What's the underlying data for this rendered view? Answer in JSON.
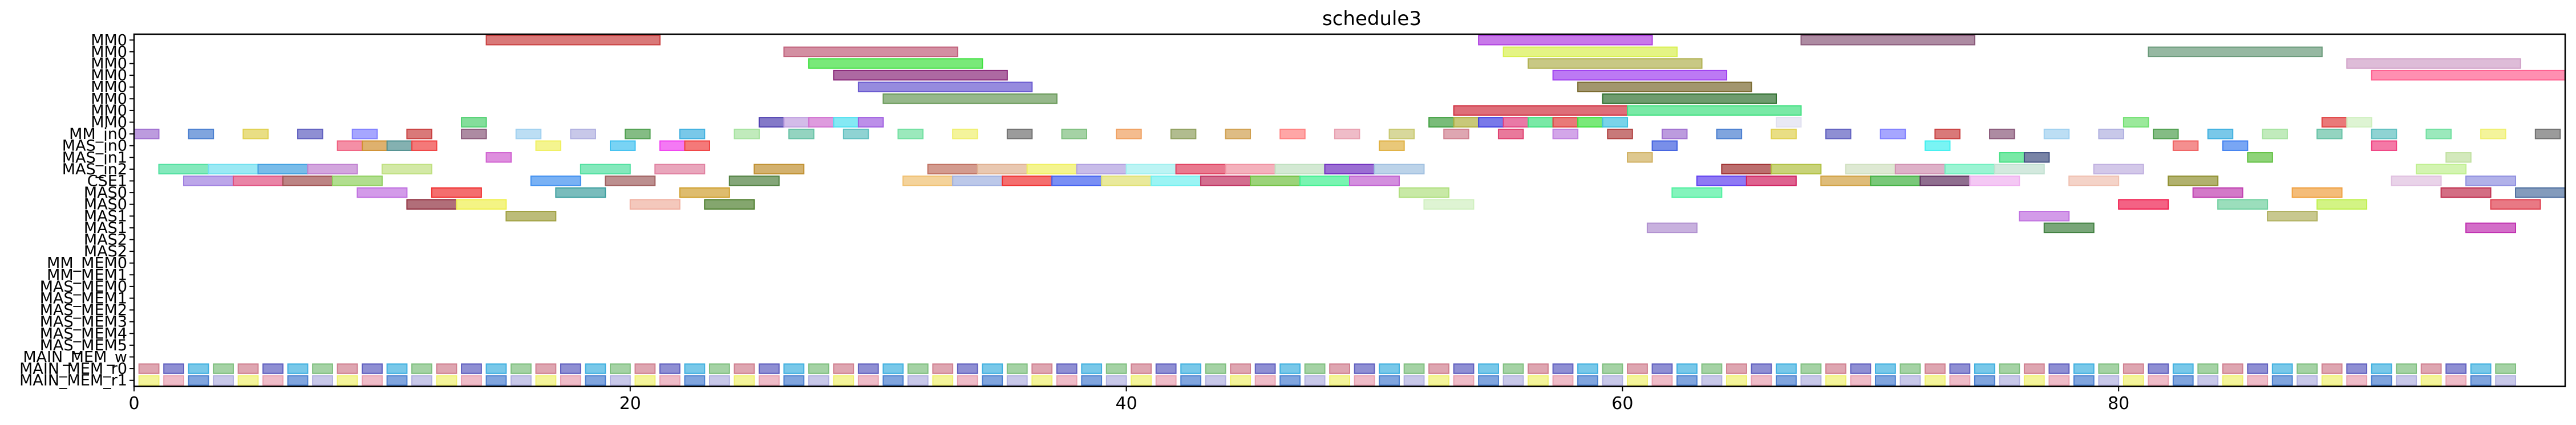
{
  "chart_data": {
    "type": "gantt",
    "title": "schedule3",
    "xlabel": "",
    "ylabel": "",
    "xlim": [
      0,
      98
    ],
    "x_ticks": [
      0,
      20,
      40,
      60,
      80
    ],
    "rows": [
      "MM0",
      "MM0",
      "MM0",
      "MM0",
      "MM0",
      "MM0",
      "MM0",
      "MM0",
      "MM_in0",
      "MAS_in0",
      "MAS_in1",
      "MAS_in2",
      "CSE1",
      "MAS0",
      "MAS0",
      "MAS1",
      "MAS1",
      "MAS2",
      "MAS2",
      "MM_MEM0",
      "MM_MEM1",
      "MAS_MEM0",
      "MAS_MEM1",
      "MAS_MEM2",
      "MAS_MEM3",
      "MAS_MEM4",
      "MAS_MEM5",
      "MAIN_MEM_w",
      "MAIN_MEM_r0",
      "MAIN_MEM_r1"
    ],
    "palette": [
      "#c94040",
      "#e8a0b0",
      "#a6e3a0",
      "#a070d0",
      "#7fbf7f",
      "#8a5a7a",
      "#c8c870",
      "#66c2a5",
      "#4a7fd0",
      "#f0a060",
      "#a0d0f0",
      "#d08090",
      "#60c0c0",
      "#e0d050",
      "#90a060",
      "#b0b0e0",
      "#e04070",
      "#70e0a0",
      "#6060c0",
      "#d0a050",
      "#50a050",
      "#c080e0",
      "#f0f070",
      "#8080ff",
      "#ff8080",
      "#40b0e0",
      "#b04040",
      "#707070"
    ],
    "bars": [
      {
        "row": 0,
        "start": 14.2,
        "end": 21.2,
        "color": "#c94040"
      },
      {
        "row": 0,
        "start": 54.2,
        "end": 61.2,
        "color": "#b040e0"
      },
      {
        "row": 0,
        "start": 67.2,
        "end": 74.2,
        "color": "#8a5a7a"
      },
      {
        "row": 1,
        "start": 26.2,
        "end": 33.2,
        "color": "#c0607a"
      },
      {
        "row": 1,
        "start": 55.2,
        "end": 62.2,
        "color": "#d8f050"
      },
      {
        "row": 1,
        "start": 81.2,
        "end": 88.2,
        "color": "#6a9a7a"
      },
      {
        "row": 2,
        "start": 27.2,
        "end": 34.2,
        "color": "#40e040"
      },
      {
        "row": 2,
        "start": 56.2,
        "end": 63.2,
        "color": "#b0b050"
      },
      {
        "row": 2,
        "start": 89.2,
        "end": 96.2,
        "color": "#d0a0c8"
      },
      {
        "row": 3,
        "start": 28.2,
        "end": 35.2,
        "color": "#8a2a7a"
      },
      {
        "row": 3,
        "start": 57.2,
        "end": 64.2,
        "color": "#a040f0"
      },
      {
        "row": 3,
        "start": 90.2,
        "end": 98.0,
        "color": "#ff6090"
      },
      {
        "row": 4,
        "start": 29.2,
        "end": 36.2,
        "color": "#6a5ad0"
      },
      {
        "row": 4,
        "start": 58.2,
        "end": 65.2,
        "color": "#7a6a30"
      },
      {
        "row": 5,
        "start": 30.2,
        "end": 37.2,
        "color": "#6a9a5a"
      },
      {
        "row": 5,
        "start": 59.2,
        "end": 66.2,
        "color": "#307030"
      },
      {
        "row": 6,
        "start": 53.2,
        "end": 60.2,
        "color": "#d03040"
      },
      {
        "row": 6,
        "start": 60.2,
        "end": 67.2,
        "color": "#40e080"
      },
      {
        "row": 7,
        "start": 13.2,
        "end": 14.2,
        "color": "#50d070"
      },
      {
        "row": 7,
        "start": 25.2,
        "end": 26.2,
        "color": "#5040b0"
      },
      {
        "row": 7,
        "start": 26.2,
        "end": 27.2,
        "color": "#c0a0e0"
      },
      {
        "row": 7,
        "start": 27.2,
        "end": 28.2,
        "color": "#d070d0"
      },
      {
        "row": 7,
        "start": 28.2,
        "end": 29.2,
        "color": "#50e0f0"
      },
      {
        "row": 7,
        "start": 29.2,
        "end": 30.2,
        "color": "#a060e0"
      },
      {
        "row": 7,
        "start": 52.2,
        "end": 53.2,
        "color": "#40a040"
      },
      {
        "row": 7,
        "start": 53.2,
        "end": 54.2,
        "color": "#b0b040"
      },
      {
        "row": 7,
        "start": 54.2,
        "end": 55.2,
        "color": "#4040e0"
      },
      {
        "row": 7,
        "start": 55.2,
        "end": 56.2,
        "color": "#e04080"
      },
      {
        "row": 7,
        "start": 56.2,
        "end": 57.2,
        "color": "#40e080"
      },
      {
        "row": 7,
        "start": 57.2,
        "end": 58.2,
        "color": "#e04040"
      },
      {
        "row": 7,
        "start": 58.2,
        "end": 59.2,
        "color": "#40e040"
      },
      {
        "row": 7,
        "start": 59.2,
        "end": 60.2,
        "color": "#40c0e0"
      },
      {
        "row": 7,
        "start": 66.2,
        "end": 67.2,
        "color": "#e0e0f0"
      },
      {
        "row": 7,
        "start": 80.2,
        "end": 81.2,
        "color": "#70e070"
      },
      {
        "row": 7,
        "start": 88.2,
        "end": 89.2,
        "color": "#e04040"
      },
      {
        "row": 7,
        "start": 89.2,
        "end": 90.2,
        "color": "#d0f0c0"
      },
      {
        "row": 9,
        "start": 8.2,
        "end": 9.2,
        "color": "#f06080"
      },
      {
        "row": 9,
        "start": 9.2,
        "end": 10.2,
        "color": "#d09030"
      },
      {
        "row": 9,
        "start": 10.2,
        "end": 11.2,
        "color": "#509090"
      },
      {
        "row": 9,
        "start": 11.2,
        "end": 12.2,
        "color": "#f04040"
      },
      {
        "row": 9,
        "start": 16.2,
        "end": 17.2,
        "color": "#f0f060"
      },
      {
        "row": 9,
        "start": 19.2,
        "end": 20.2,
        "color": "#40c0f0"
      },
      {
        "row": 9,
        "start": 21.2,
        "end": 22.2,
        "color": "#f040f0"
      },
      {
        "row": 9,
        "start": 22.2,
        "end": 23.2,
        "color": "#f04040"
      },
      {
        "row": 9,
        "start": 50.2,
        "end": 51.2,
        "color": "#e0b040"
      },
      {
        "row": 9,
        "start": 61.2,
        "end": 62.2,
        "color": "#4060e0"
      },
      {
        "row": 9,
        "start": 72.2,
        "end": 73.2,
        "color": "#40f0f0"
      },
      {
        "row": 9,
        "start": 82.2,
        "end": 83.2,
        "color": "#f06060"
      },
      {
        "row": 9,
        "start": 84.2,
        "end": 85.2,
        "color": "#4080f0"
      },
      {
        "row": 9,
        "start": 90.2,
        "end": 91.2,
        "color": "#f04080"
      },
      {
        "row": 10,
        "start": 14.2,
        "end": 15.2,
        "color": "#d060d0"
      },
      {
        "row": 10,
        "start": 60.2,
        "end": 61.2,
        "color": "#d0b060"
      },
      {
        "row": 10,
        "start": 75.2,
        "end": 76.2,
        "color": "#40e080"
      },
      {
        "row": 10,
        "start": 76.2,
        "end": 77.2,
        "color": "#405080"
      },
      {
        "row": 10,
        "start": 85.2,
        "end": 86.2,
        "color": "#60c040"
      },
      {
        "row": 10,
        "start": 93.2,
        "end": 94.2,
        "color": "#c0e0a0"
      },
      {
        "row": 11,
        "start": 1.0,
        "end": 3.0,
        "color": "#50e0a0"
      },
      {
        "row": 11,
        "start": 3.0,
        "end": 5.0,
        "color": "#70e0f0"
      },
      {
        "row": 11,
        "start": 5.0,
        "end": 7.0,
        "color": "#40a0e0"
      },
      {
        "row": 11,
        "start": 7.0,
        "end": 9.0,
        "color": "#c080d0"
      },
      {
        "row": 11,
        "start": 10.0,
        "end": 12.0,
        "color": "#c0e080"
      },
      {
        "row": 11,
        "start": 18.0,
        "end": 20.0,
        "color": "#50e0a0"
      },
      {
        "row": 11,
        "start": 21.0,
        "end": 23.0,
        "color": "#e080a0"
      },
      {
        "row": 11,
        "start": 25.0,
        "end": 27.0,
        "color": "#c09030"
      },
      {
        "row": 11,
        "start": 32.0,
        "end": 34.0,
        "color": "#c07060"
      },
      {
        "row": 11,
        "start": 34.0,
        "end": 36.0,
        "color": "#e0b090"
      },
      {
        "row": 11,
        "start": 36.0,
        "end": 38.0,
        "color": "#f0f060"
      },
      {
        "row": 11,
        "start": 38.0,
        "end": 40.0,
        "color": "#b0a0e0"
      },
      {
        "row": 11,
        "start": 40.0,
        "end": 42.0,
        "color": "#a0f0f0"
      },
      {
        "row": 11,
        "start": 42.0,
        "end": 44.0,
        "color": "#e04060"
      },
      {
        "row": 11,
        "start": 44.0,
        "end": 46.0,
        "color": "#f090a0"
      },
      {
        "row": 11,
        "start": 46.0,
        "end": 48.0,
        "color": "#c0e0c0"
      },
      {
        "row": 11,
        "start": 48.0,
        "end": 50.0,
        "color": "#7030c0"
      },
      {
        "row": 11,
        "start": 50.0,
        "end": 52.0,
        "color": "#a0c0e0"
      },
      {
        "row": 11,
        "start": 64.0,
        "end": 66.0,
        "color": "#a03030"
      },
      {
        "row": 11,
        "start": 66.0,
        "end": 68.0,
        "color": "#b0c040"
      },
      {
        "row": 11,
        "start": 69.0,
        "end": 71.0,
        "color": "#d0e0c0"
      },
      {
        "row": 11,
        "start": 71.0,
        "end": 73.0,
        "color": "#d090b0"
      },
      {
        "row": 11,
        "start": 73.0,
        "end": 75.0,
        "color": "#70f0c0"
      },
      {
        "row": 11,
        "start": 75.0,
        "end": 77.0,
        "color": "#c0e0d0"
      },
      {
        "row": 11,
        "start": 79.0,
        "end": 81.0,
        "color": "#c0b0e0"
      },
      {
        "row": 11,
        "start": 92.0,
        "end": 94.0,
        "color": "#c0f090"
      },
      {
        "row": 12,
        "start": 2.0,
        "end": 4.0,
        "color": "#a080e0"
      },
      {
        "row": 12,
        "start": 4.0,
        "end": 6.0,
        "color": "#e05080"
      },
      {
        "row": 12,
        "start": 6.0,
        "end": 8.0,
        "color": "#a05050"
      },
      {
        "row": 12,
        "start": 8.0,
        "end": 10.0,
        "color": "#90d060"
      },
      {
        "row": 12,
        "start": 16.0,
        "end": 18.0,
        "color": "#4090f0"
      },
      {
        "row": 12,
        "start": 19.0,
        "end": 21.0,
        "color": "#a06060"
      },
      {
        "row": 12,
        "start": 24.0,
        "end": 26.0,
        "color": "#508040"
      },
      {
        "row": 12,
        "start": 31.0,
        "end": 33.0,
        "color": "#f0c070"
      },
      {
        "row": 12,
        "start": 33.0,
        "end": 35.0,
        "color": "#a0b0e0"
      },
      {
        "row": 12,
        "start": 35.0,
        "end": 37.0,
        "color": "#f03030"
      },
      {
        "row": 12,
        "start": 37.0,
        "end": 39.0,
        "color": "#4060f0"
      },
      {
        "row": 12,
        "start": 39.0,
        "end": 41.0,
        "color": "#e0e070"
      },
      {
        "row": 12,
        "start": 41.0,
        "end": 43.0,
        "color": "#70f0f0"
      },
      {
        "row": 12,
        "start": 43.0,
        "end": 45.0,
        "color": "#c03060"
      },
      {
        "row": 12,
        "start": 45.0,
        "end": 47.0,
        "color": "#70c040"
      },
      {
        "row": 12,
        "start": 47.0,
        "end": 49.0,
        "color": "#40f090"
      },
      {
        "row": 12,
        "start": 49.0,
        "end": 51.0,
        "color": "#c060d0"
      },
      {
        "row": 12,
        "start": 63.0,
        "end": 65.0,
        "color": "#6040f0"
      },
      {
        "row": 12,
        "start": 65.0,
        "end": 67.0,
        "color": "#d02060"
      },
      {
        "row": 12,
        "start": 68.0,
        "end": 70.0,
        "color": "#d0a040"
      },
      {
        "row": 12,
        "start": 70.0,
        "end": 72.0,
        "color": "#40b040"
      },
      {
        "row": 12,
        "start": 72.0,
        "end": 74.0,
        "color": "#603060"
      },
      {
        "row": 12,
        "start": 74.0,
        "end": 76.0,
        "color": "#f0b0f0"
      },
      {
        "row": 12,
        "start": 78.0,
        "end": 80.0,
        "color": "#f0c0b0"
      },
      {
        "row": 12,
        "start": 82.0,
        "end": 84.0,
        "color": "#909030"
      },
      {
        "row": 12,
        "start": 91.0,
        "end": 93.0,
        "color": "#e0c0e0"
      },
      {
        "row": 12,
        "start": 94.0,
        "end": 96.0,
        "color": "#9090e0"
      },
      {
        "row": 13,
        "start": 9.0,
        "end": 11.0,
        "color": "#c070e0"
      },
      {
        "row": 13,
        "start": 12.0,
        "end": 14.0,
        "color": "#f03030"
      },
      {
        "row": 13,
        "start": 17.0,
        "end": 19.0,
        "color": "#40a0a0"
      },
      {
        "row": 13,
        "start": 22.0,
        "end": 24.0,
        "color": "#d0a030"
      },
      {
        "row": 13,
        "start": 51.0,
        "end": 53.0,
        "color": "#b0e080"
      },
      {
        "row": 13,
        "start": 62.0,
        "end": 64.0,
        "color": "#50f0a0"
      },
      {
        "row": 13,
        "start": 83.0,
        "end": 85.0,
        "color": "#c040b0"
      },
      {
        "row": 13,
        "start": 87.0,
        "end": 89.0,
        "color": "#f0a040"
      },
      {
        "row": 13,
        "start": 93.0,
        "end": 95.0,
        "color": "#c03050"
      },
      {
        "row": 13,
        "start": 96.0,
        "end": 98.0,
        "color": "#5070a0"
      },
      {
        "row": 14,
        "start": 11.0,
        "end": 13.0,
        "color": "#903040"
      },
      {
        "row": 14,
        "start": 13.0,
        "end": 15.0,
        "color": "#f0f050"
      },
      {
        "row": 14,
        "start": 20.0,
        "end": 22.0,
        "color": "#f0b0a0"
      },
      {
        "row": 14,
        "start": 23.0,
        "end": 25.0,
        "color": "#508030"
      },
      {
        "row": 14,
        "start": 52.0,
        "end": 54.0,
        "color": "#d0f0c0"
      },
      {
        "row": 14,
        "start": 80.0,
        "end": 82.0,
        "color": "#f02050"
      },
      {
        "row": 14,
        "start": 84.0,
        "end": 86.0,
        "color": "#70d0a0"
      },
      {
        "row": 14,
        "start": 88.0,
        "end": 90.0,
        "color": "#c0f050"
      },
      {
        "row": 14,
        "start": 95.0,
        "end": 97.0,
        "color": "#e04050"
      },
      {
        "row": 15,
        "start": 15.0,
        "end": 17.0,
        "color": "#a0a040"
      },
      {
        "row": 15,
        "start": 76.0,
        "end": 78.0,
        "color": "#c070e0"
      },
      {
        "row": 15,
        "start": 86.0,
        "end": 88.0,
        "color": "#b0b060"
      },
      {
        "row": 16,
        "start": 61.0,
        "end": 63.0,
        "color": "#b090d0"
      },
      {
        "row": 16,
        "start": 77.0,
        "end": 79.0,
        "color": "#408040"
      },
      {
        "row": 16,
        "start": 94.0,
        "end": 96.0,
        "color": "#c030b0"
      }
    ]
  }
}
